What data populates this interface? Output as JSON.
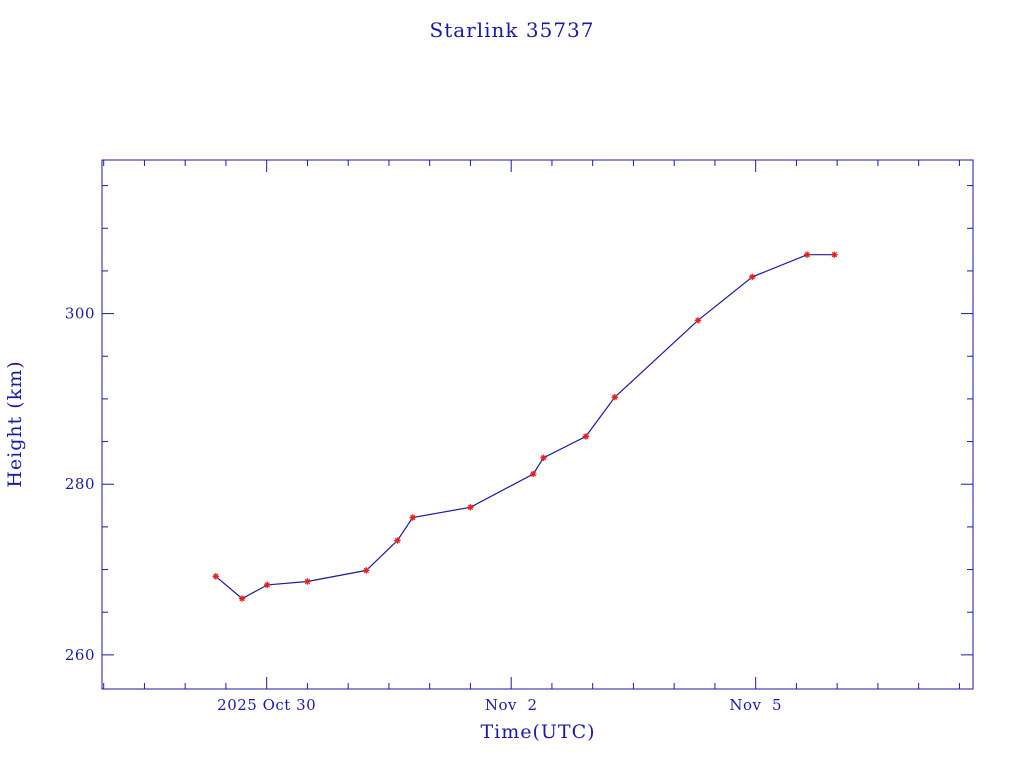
{
  "colors": {
    "axis": "#1a1aa6",
    "line": "#1a1aa6",
    "marker": "#e8201b",
    "background": "#ffffff"
  },
  "chart_data": {
    "type": "line",
    "title": "Starlink 35737",
    "xlabel": "Time(UTC)",
    "ylabel": "Height (km)",
    "x_tick_labels": [
      {
        "date": "2025-10-30",
        "label": "2025 Oct 30"
      },
      {
        "date": "2025-11-02",
        "label": "Nov  2"
      },
      {
        "date": "2025-11-05",
        "label": "Nov  5"
      }
    ],
    "y_ticks": [
      260,
      280,
      300
    ],
    "xlim": [
      "2025-10-27T23:30",
      "2025-11-07T16:00"
    ],
    "ylim": [
      256,
      318
    ],
    "grid": false,
    "series": [
      {
        "x": [
          "2025-10-29T09:00",
          "2025-10-29T16:45",
          "2025-10-30T00:10",
          "2025-10-30T12:00",
          "2025-10-31T05:20",
          "2025-10-31T14:30",
          "2025-10-31T19:00",
          "2025-11-01T12:00",
          "2025-11-02T06:30",
          "2025-11-02T09:30",
          "2025-11-02T22:00",
          "2025-11-03T06:30",
          "2025-11-04T07:00",
          "2025-11-04T23:00",
          "2025-11-05T15:10",
          "2025-11-05T23:10"
        ],
        "y": [
          269.2,
          266.6,
          268.2,
          268.6,
          269.9,
          273.4,
          276.1,
          277.3,
          281.2,
          283.1,
          285.6,
          290.2,
          299.2,
          304.3,
          306.9,
          306.9
        ]
      }
    ]
  }
}
